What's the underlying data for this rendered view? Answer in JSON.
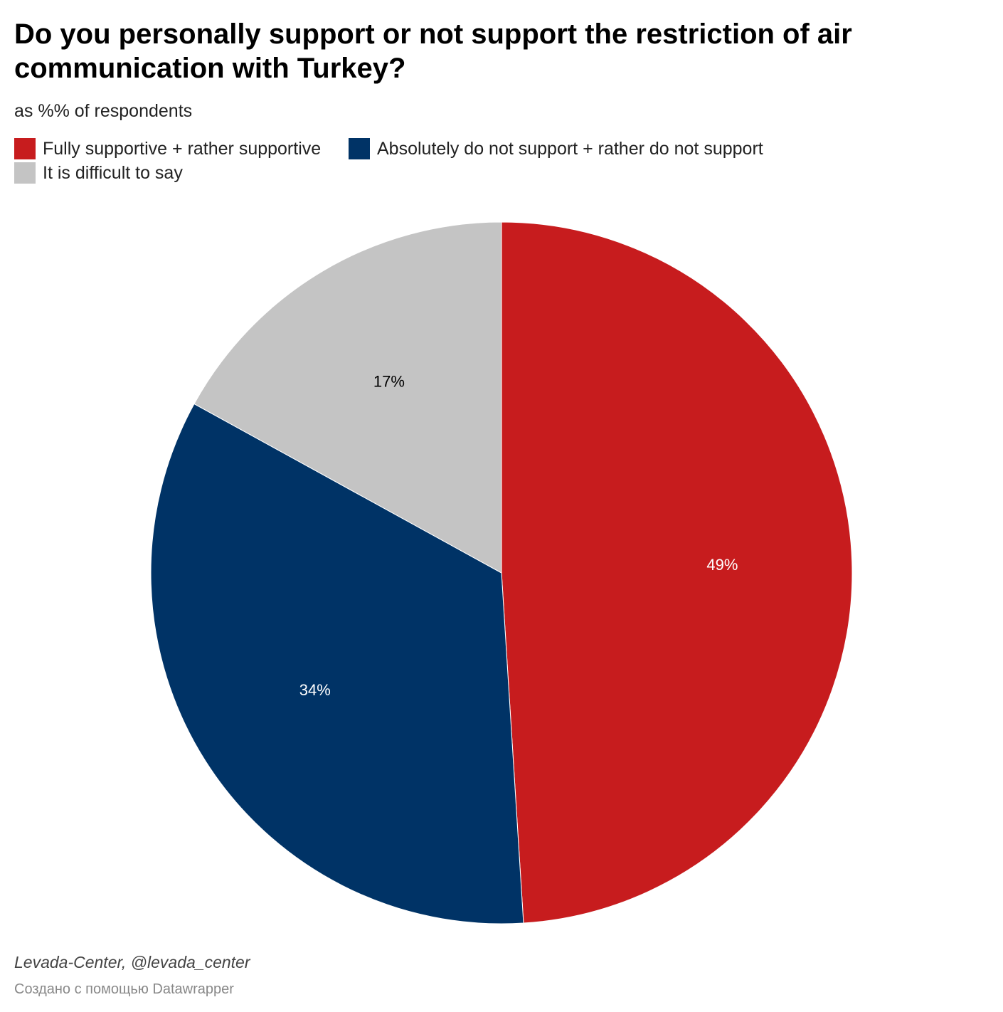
{
  "header": {
    "title": "Do you personally support or not support the restriction of air communication with Turkey?",
    "subtitle": "as %% of respondents"
  },
  "chart_data": {
    "type": "pie",
    "title": "Do you personally support or not support the restriction of air communication with Turkey?",
    "subtitle": "as %% of respondents",
    "start": "12 o'clock, clockwise",
    "slices": [
      {
        "label": "Fully supportive + rather supportive",
        "value": 49,
        "display": "49%",
        "color": "#c71c1e",
        "label_color": "#ffffff"
      },
      {
        "label": "Absolutely do not support + rather do not support",
        "value": 34,
        "display": "34%",
        "color": "#003366",
        "label_color": "#ffffff"
      },
      {
        "label": "It is difficult to say",
        "value": 17,
        "display": "17%",
        "color": "#c4c4c4",
        "label_color": "#000000"
      }
    ]
  },
  "footer": {
    "source": "Levada-Center, @levada_center",
    "credit": "Создано с помощью Datawrapper"
  }
}
